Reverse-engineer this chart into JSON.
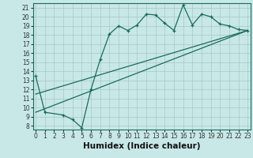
{
  "xlabel": "Humidex (Indice chaleur)",
  "bg_color": "#c8e8e8",
  "grid_color": "#a8c8c4",
  "line_color": "#1a6b5a",
  "xlim": [
    -0.3,
    23.3
  ],
  "ylim": [
    7.6,
    21.5
  ],
  "xticks": [
    0,
    1,
    2,
    3,
    4,
    5,
    6,
    7,
    8,
    9,
    10,
    11,
    12,
    13,
    14,
    15,
    16,
    17,
    18,
    19,
    20,
    21,
    22,
    23
  ],
  "yticks": [
    8,
    9,
    10,
    11,
    12,
    13,
    14,
    15,
    16,
    17,
    18,
    19,
    20,
    21
  ],
  "line1_x": [
    0,
    1,
    3,
    4,
    5,
    6,
    7,
    8,
    9,
    10,
    11,
    12,
    13,
    14,
    15,
    16,
    17,
    18,
    19,
    20,
    21,
    22,
    23
  ],
  "line1_y": [
    13.5,
    9.5,
    9.2,
    8.7,
    7.8,
    12.0,
    15.3,
    18.1,
    19.0,
    18.5,
    19.1,
    20.3,
    20.2,
    19.3,
    18.5,
    21.3,
    19.1,
    20.3,
    20.0,
    19.2,
    19.0,
    18.6,
    18.5
  ],
  "line2_x": [
    0,
    23
  ],
  "line2_y": [
    9.5,
    18.5
  ],
  "line3_x": [
    0,
    23
  ],
  "line3_y": [
    11.5,
    18.5
  ],
  "tick_fontsize": 5.5,
  "xlabel_fontsize": 7.5
}
